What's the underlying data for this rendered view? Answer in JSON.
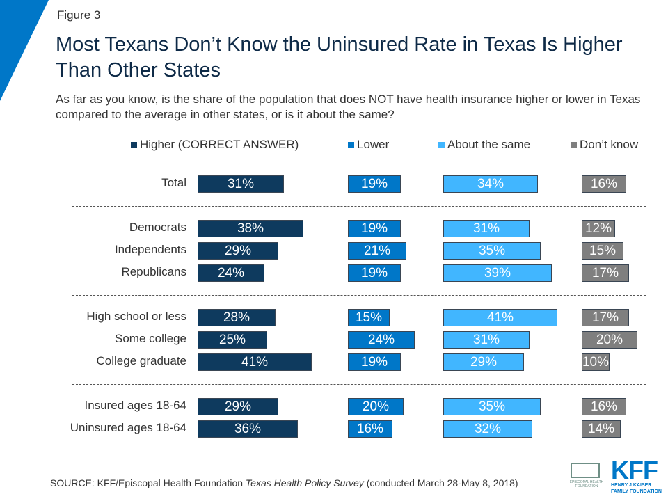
{
  "figure_label": "Figure 3",
  "colors": {
    "accent": "#0077C8",
    "higher": "#0E3A5E",
    "lower": "#0077C8",
    "same": "#41B6FF",
    "dontknow": "#7F7F7F"
  },
  "chart_data": {
    "type": "bar",
    "title": "Most Texans Don’t Know the Uninsured Rate in Texas Is Higher Than Other States",
    "subtitle": "As far as you know, is the share of the population that does NOT have health insurance higher or lower in Texas compared to the average in other states, or is it about the same?",
    "legend_placement": "top",
    "categories": [
      "Total",
      "Democrats",
      "Independents",
      "Republicans",
      "High school or less",
      "Some college",
      "College graduate",
      "Insured ages 18-64",
      "Uninsured ages 18-64"
    ],
    "series": [
      {
        "name": "Higher (CORRECT ANSWER)",
        "values": [
          31,
          38,
          29,
          24,
          28,
          25,
          41,
          29,
          36
        ]
      },
      {
        "name": "Lower",
        "values": [
          19,
          19,
          21,
          19,
          15,
          24,
          19,
          20,
          16
        ]
      },
      {
        "name": "About the same",
        "values": [
          34,
          31,
          35,
          39,
          41,
          31,
          29,
          35,
          32
        ]
      },
      {
        "name": "Don’t know",
        "values": [
          16,
          12,
          15,
          17,
          17,
          20,
          10,
          16,
          14
        ]
      }
    ]
  },
  "source": {
    "prefix": "SOURCE: KFF/Episcopal Health Foundation ",
    "italic": "Texas Health Policy Survey",
    "suffix": " (conducted March 28-May 8, 2018)"
  },
  "logos": {
    "ehf": "EPISCOPAL HEALTH FOUNDATION",
    "kff": "KFF",
    "kff_sub": "HENRY J KAISER FAMILY FOUNDATION"
  }
}
